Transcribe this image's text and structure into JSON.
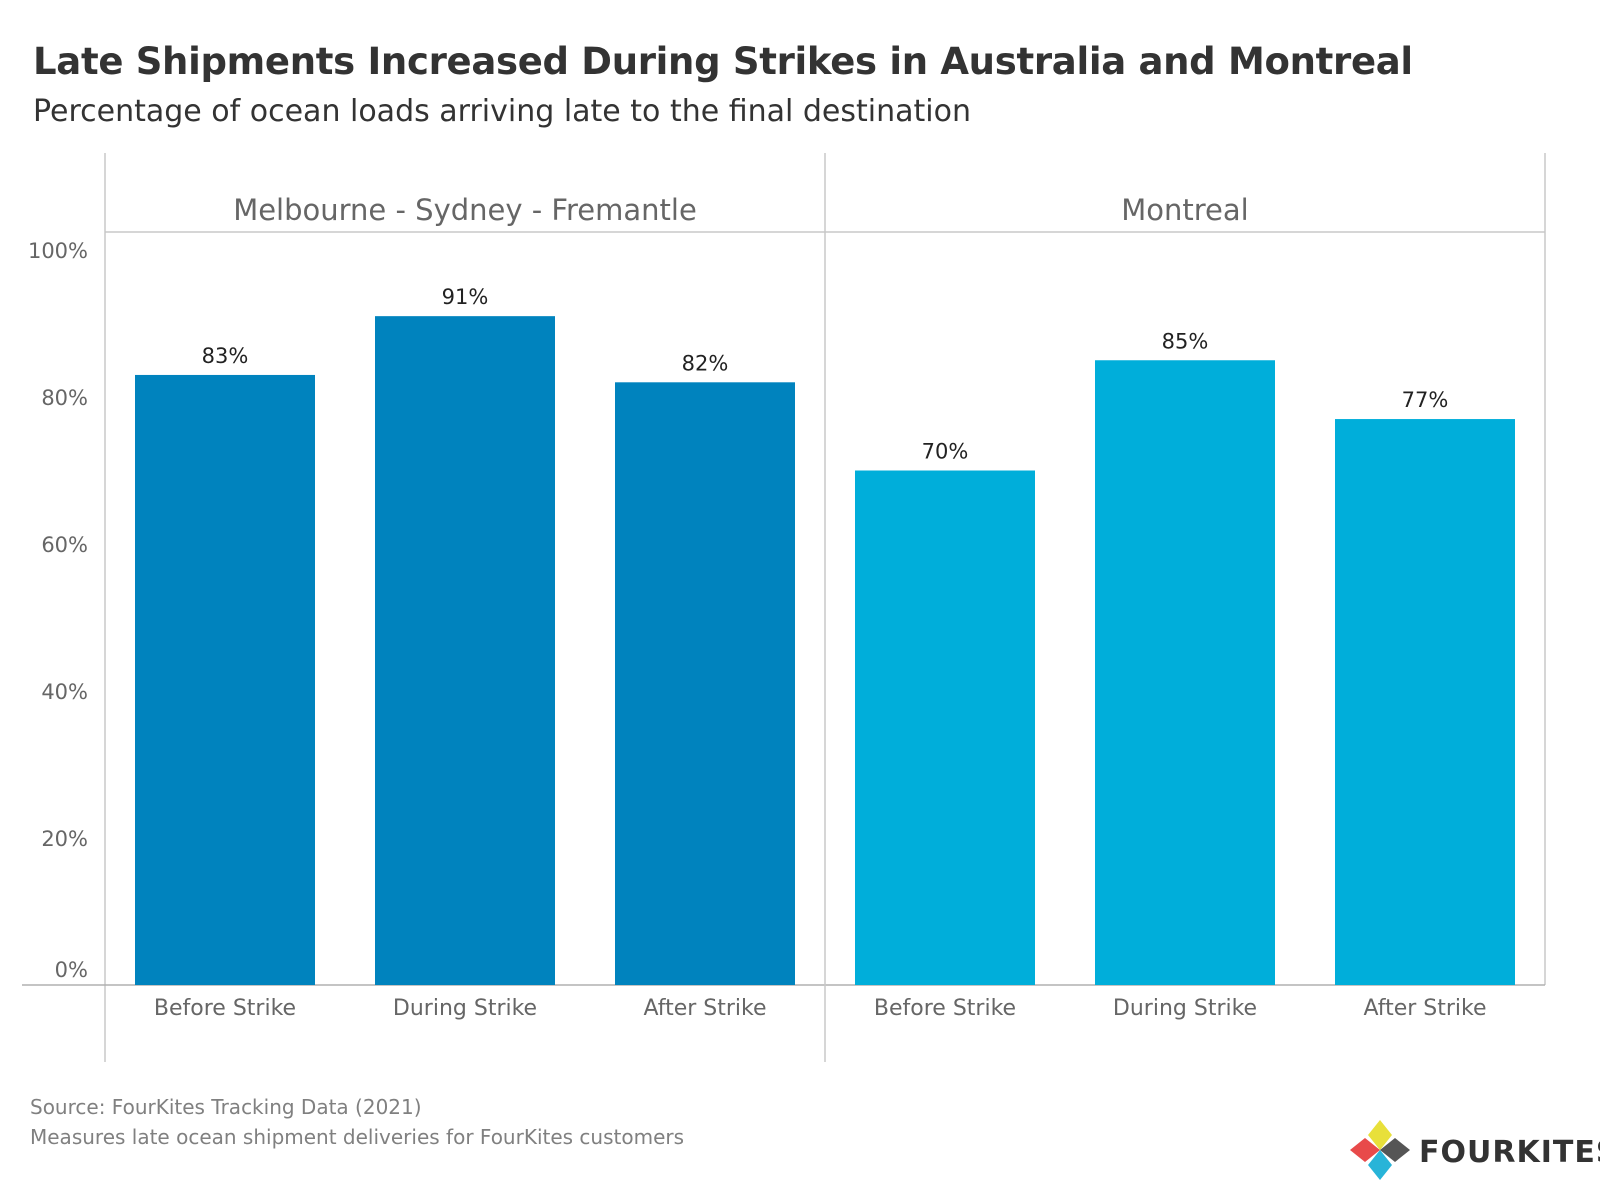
{
  "header": {
    "title": "Late Shipments Increased During Strikes in Australia and Montreal",
    "subtitle": "Percentage of ocean loads arriving late to the final destination"
  },
  "chart_data": {
    "type": "bar",
    "panels": [
      {
        "name": "Melbourne - Sydney - Fremantle",
        "color": "#0083BE",
        "categories": [
          "Before Strike",
          "During Strike",
          "After Strike"
        ],
        "values": [
          83,
          91,
          82
        ],
        "labels": [
          "83%",
          "91%",
          "82%"
        ]
      },
      {
        "name": "Montreal",
        "color": "#00AEDA",
        "categories": [
          "Before Strike",
          "During Strike",
          "After Strike"
        ],
        "values": [
          70,
          85,
          77
        ],
        "labels": [
          "70%",
          "85%",
          "77%"
        ]
      }
    ],
    "yticks": [
      0,
      20,
      40,
      60,
      80,
      100
    ],
    "ytick_labels": [
      "0%",
      "20%",
      "40%",
      "60%",
      "80%",
      "100%"
    ],
    "ylim": [
      0,
      100
    ],
    "grid": false
  },
  "footer": {
    "source": "Source: FourKites Tracking Data (2021)",
    "note": "Measures late ocean shipment deliveries for FourKites customers"
  },
  "logo": {
    "text": "FOURKITES",
    "colors": [
      "#E8E03A",
      "#E84A4A",
      "#555555",
      "#28B4D8"
    ]
  }
}
